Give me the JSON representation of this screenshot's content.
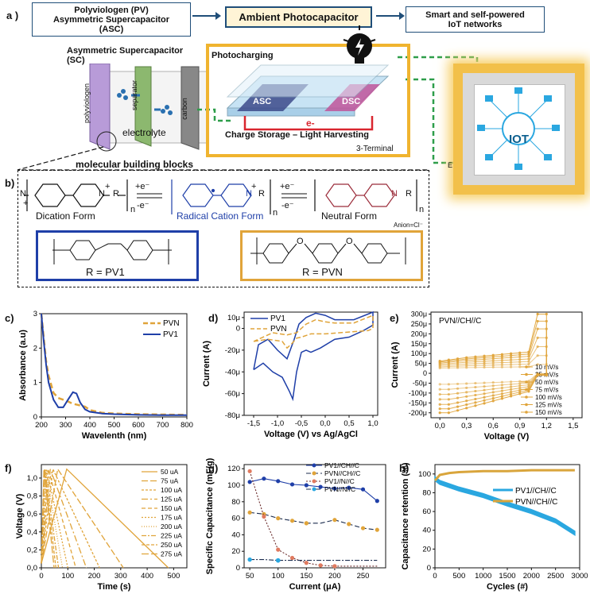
{
  "panel_a": {
    "label": "a )",
    "box_left": "Polyviologen (PV)\nAsymmetric Supercapacitor\n(ASC)",
    "box_center": "Ambient Photocapacitor",
    "box_right": "Smart and self-powered\nIoT networks",
    "sc_title": "Asymmetric Supercapacitor\n(SC)",
    "sc_layers": [
      "polyviologen",
      "separator",
      "carbon"
    ],
    "electrolyte": "electrolyte",
    "photocharging": "Photocharging",
    "asc": "ASC",
    "dsc": "DSC",
    "electron": "e-",
    "storage_caption": "Charge Storage – Light Harvesting",
    "terminal": "3-Terminal",
    "iot": "IOT",
    "e_label": "E"
  },
  "panel_b": {
    "label": "b)",
    "title": "molecular building blocks",
    "dication": "Dication Form",
    "radical": "Radical Cation Form",
    "neutral": "Neutral Form",
    "anion": "Anion=Cl⁻",
    "e_plus": "+e⁻",
    "e_minus": "-e⁻",
    "n": "n",
    "N": "N",
    "R": "R",
    "plus": "+",
    "pv1": "R = PV1",
    "pvn": "R = PVN",
    "O": "O"
  },
  "colors": {
    "blue": "#1f3fa8",
    "gold": "#e0a43a",
    "green": "#2e9e4a",
    "navy": "#1f4e79",
    "cyan": "#2aa7e0"
  },
  "chart_data": [
    {
      "id": "c",
      "type": "line",
      "panel_label": "c)",
      "xlabel": "Wavelenth (nm)",
      "ylabel": "Absorbance (a.u)",
      "xlim": [
        200,
        800
      ],
      "ylim": [
        0,
        3
      ],
      "xticks": [
        "200",
        "300",
        "400",
        "500",
        "600",
        "700",
        "800"
      ],
      "yticks": [
        "0",
        "1",
        "2",
        "3"
      ],
      "legend": [
        "PVN",
        "PV1"
      ],
      "series": [
        {
          "name": "PVN",
          "x": [
            200,
            210,
            220,
            230,
            250,
            270,
            290,
            310,
            330,
            350,
            380,
            400,
            450,
            500,
            600,
            700,
            800
          ],
          "y": [
            3.0,
            2.3,
            1.6,
            1.2,
            0.7,
            0.55,
            0.5,
            0.45,
            0.38,
            0.35,
            0.3,
            0.2,
            0.12,
            0.1,
            0.08,
            0.07,
            0.06
          ]
        },
        {
          "name": "PV1",
          "x": [
            200,
            210,
            220,
            230,
            250,
            270,
            290,
            310,
            330,
            345,
            360,
            380,
            400,
            450,
            500,
            600,
            700,
            800
          ],
          "y": [
            3.0,
            2.2,
            1.5,
            1.0,
            0.5,
            0.28,
            0.28,
            0.5,
            0.72,
            0.68,
            0.42,
            0.22,
            0.15,
            0.1,
            0.08,
            0.06,
            0.05,
            0.05
          ]
        }
      ]
    },
    {
      "id": "d",
      "type": "line",
      "panel_label": "d)",
      "xlabel": "Voltage (V) vs Ag/AgCl",
      "ylabel": "Current (A)",
      "xlim": [
        -1.7,
        1.1
      ],
      "ylim": [
        -80,
        15
      ],
      "xticks": [
        "-1,5",
        "-1,0",
        "-0,5",
        "0,0",
        "0,5",
        "1,0"
      ],
      "yticks": [
        "10μ",
        "0",
        "-20μ",
        "-40μ",
        "-60μ",
        "-80μ"
      ],
      "ytick_values": [
        10,
        0,
        -20,
        -40,
        -60,
        -80
      ],
      "xtick_values": [
        -1.5,
        -1.0,
        -0.5,
        0.0,
        0.5,
        1.0
      ],
      "legend": [
        "PV1",
        "PVN"
      ],
      "series": [
        {
          "name": "PV1",
          "x": [
            -1.5,
            -1.3,
            -1.1,
            -0.9,
            -0.75,
            -0.68,
            -0.6,
            -0.5,
            -0.4,
            -0.3,
            -0.1,
            0.2,
            0.5,
            0.8,
            1.0,
            1.0,
            0.6,
            0.2,
            0.0,
            -0.2,
            -0.4,
            -0.55,
            -0.65,
            -0.8,
            -1.0,
            -1.2,
            -1.4,
            -1.5
          ],
          "y": [
            -38,
            -32,
            -40,
            -45,
            -58,
            -65,
            -40,
            -22,
            -20,
            -22,
            -18,
            -10,
            -8,
            -2,
            3,
            15,
            8,
            8,
            12,
            14,
            10,
            4,
            -10,
            -28,
            -20,
            -10,
            -15,
            -38
          ]
        },
        {
          "name": "PVN",
          "x": [
            -1.5,
            -1.2,
            -0.9,
            -0.8,
            -0.7,
            -0.6,
            -0.5,
            -0.3,
            0.0,
            0.3,
            0.6,
            0.9,
            1.0,
            1.0,
            0.6,
            0.2,
            0.0,
            -0.2,
            -0.4,
            -0.5,
            -0.6,
            -0.8,
            -1.1,
            -1.5
          ],
          "y": [
            -12,
            -10,
            -12,
            -18,
            -14,
            -9,
            -8,
            -5,
            -5,
            -4,
            -3,
            -2,
            0,
            12,
            5,
            5,
            6,
            8,
            4,
            0,
            -4,
            -6,
            -4,
            -12
          ]
        }
      ]
    },
    {
      "id": "e",
      "type": "line",
      "panel_label": "e)",
      "xlabel": "Voltage (V)",
      "ylabel": "Current (A)",
      "title": "PVN//CH//C",
      "xlim": [
        -0.1,
        1.6
      ],
      "ylim": [
        -225,
        310
      ],
      "xticks": [
        "0,0",
        "0,3",
        "0,6",
        "0,9",
        "1,2",
        "1,5"
      ],
      "xtick_values": [
        0.0,
        0.3,
        0.6,
        0.9,
        1.2,
        1.5
      ],
      "yticks": [
        "300μ",
        "250μ",
        "200μ",
        "150μ",
        "100μ",
        "50μ",
        "0",
        "-50μ",
        "-100μ",
        "-150μ",
        "-200μ"
      ],
      "ytick_values": [
        300,
        250,
        200,
        150,
        100,
        50,
        0,
        -50,
        -100,
        -150,
        -200
      ],
      "legend": [
        "10 mV/s",
        "25 mV/s",
        "50 mV/s",
        "75 mV/s",
        "100 mV/s",
        "125 mV/s",
        "150 mV/s"
      ],
      "scale_factors": [
        0.15,
        0.3,
        0.45,
        0.6,
        0.75,
        0.88,
        1.0
      ]
    },
    {
      "id": "f",
      "type": "line",
      "panel_label": "f)",
      "xlabel": "Time (s)",
      "ylabel": "Voltage (V)",
      "xlim": [
        0,
        550
      ],
      "ylim": [
        0,
        1.15
      ],
      "xticks": [
        "0",
        "100",
        "200",
        "300",
        "400",
        "500"
      ],
      "xtick_values": [
        0,
        100,
        200,
        300,
        400,
        500
      ],
      "yticks": [
        "0,0",
        "0,2",
        "0,4",
        "0,6",
        "0,8",
        "1,0"
      ],
      "ytick_values": [
        0,
        0.2,
        0.4,
        0.6,
        0.8,
        1.0
      ],
      "legend": [
        "50 uA",
        "75 uA",
        "100 uA",
        "125 uA",
        "150 uA",
        "175 uA",
        "200 uA",
        "225 uA",
        "250 uA",
        "275 uA"
      ],
      "cycle_end_times": [
        480,
        310,
        220,
        170,
        130,
        100,
        80,
        65,
        55,
        48
      ]
    },
    {
      "id": "g",
      "type": "scatter",
      "panel_label": "g)",
      "xlabel": "Current (μA)",
      "ylabel": "Specific Capacitance (mF/g)",
      "xlim": [
        40,
        290
      ],
      "ylim": [
        0,
        125
      ],
      "xticks": [
        "50",
        "100",
        "150",
        "200",
        "250"
      ],
      "xtick_values": [
        50,
        100,
        150,
        200,
        250
      ],
      "yticks": [
        "0",
        "20",
        "40",
        "60",
        "80",
        "100",
        "120"
      ],
      "ytick_values": [
        0,
        20,
        40,
        60,
        80,
        100,
        120
      ],
      "legend": [
        "PV1//CH//C",
        "PVN//CH//C",
        "PV1//N//C",
        "PVN//N//C"
      ],
      "x": [
        50,
        75,
        100,
        125,
        150,
        175,
        200,
        225,
        250,
        275
      ],
      "series": [
        {
          "name": "PV1//CH//C",
          "values": [
            104,
            108,
            105,
            101,
            100,
            98,
            96,
            97,
            95,
            81
          ]
        },
        {
          "name": "PVN//CH//C",
          "values": [
            67,
            65,
            60,
            57,
            54,
            54,
            58,
            53,
            48,
            46
          ]
        },
        {
          "name": "PV1//N//C",
          "values": [
            117,
            62,
            22,
            12,
            6,
            3,
            2,
            2,
            2,
            2
          ]
        },
        {
          "name": "PVN//N//C",
          "values": [
            10,
            10,
            9,
            9,
            9,
            9,
            9,
            9,
            9,
            9
          ]
        }
      ]
    },
    {
      "id": "h",
      "type": "line",
      "panel_label": "h)",
      "xlabel": "Cycles (#)",
      "ylabel": "Capacitance retention (%)",
      "xlim": [
        0,
        3000
      ],
      "ylim": [
        0,
        110
      ],
      "xticks": [
        "0",
        "500",
        "1000",
        "1500",
        "2000",
        "2500",
        "3000"
      ],
      "xtick_values": [
        0,
        500,
        1000,
        1500,
        2000,
        2500,
        3000
      ],
      "yticks": [
        "0",
        "20",
        "40",
        "60",
        "80",
        "100"
      ],
      "ytick_values": [
        0,
        20,
        40,
        60,
        80,
        100
      ],
      "legend": [
        "PV1//CH//C",
        "PVN//CH//C"
      ],
      "series": [
        {
          "name": "PV1//CH//C",
          "x": [
            0,
            100,
            500,
            1000,
            1500,
            2000,
            2500,
            2900
          ],
          "y": [
            95,
            91,
            84,
            77,
            68,
            60,
            50,
            37
          ]
        },
        {
          "name": "PVN//CH//C",
          "x": [
            0,
            100,
            300,
            500,
            1000,
            1500,
            2000,
            2500,
            2900
          ],
          "y": [
            93,
            99,
            101,
            102,
            103,
            103,
            104,
            104,
            104
          ]
        }
      ]
    }
  ]
}
